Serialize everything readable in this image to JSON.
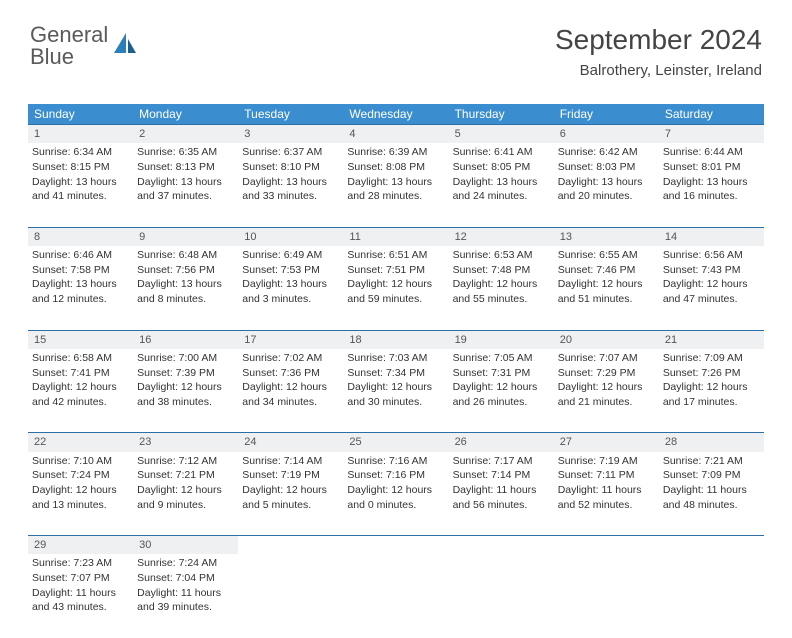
{
  "brand": {
    "word1": "General",
    "word2": "Blue"
  },
  "header": {
    "month_title": "September 2024",
    "location": "Balrothery, Leinster, Ireland"
  },
  "colors": {
    "header_bg": "#3a8dce",
    "header_border": "#2a6fa5",
    "daynum_bg": "#eef0f1",
    "brand_blue": "#2a7fba"
  },
  "weekday_names": [
    "Sunday",
    "Monday",
    "Tuesday",
    "Wednesday",
    "Thursday",
    "Friday",
    "Saturday"
  ],
  "weeks": [
    [
      {
        "n": "1",
        "sr": "6:34 AM",
        "ss": "8:15 PM",
        "dh": "13",
        "dm": "41"
      },
      {
        "n": "2",
        "sr": "6:35 AM",
        "ss": "8:13 PM",
        "dh": "13",
        "dm": "37"
      },
      {
        "n": "3",
        "sr": "6:37 AM",
        "ss": "8:10 PM",
        "dh": "13",
        "dm": "33"
      },
      {
        "n": "4",
        "sr": "6:39 AM",
        "ss": "8:08 PM",
        "dh": "13",
        "dm": "28"
      },
      {
        "n": "5",
        "sr": "6:41 AM",
        "ss": "8:05 PM",
        "dh": "13",
        "dm": "24"
      },
      {
        "n": "6",
        "sr": "6:42 AM",
        "ss": "8:03 PM",
        "dh": "13",
        "dm": "20"
      },
      {
        "n": "7",
        "sr": "6:44 AM",
        "ss": "8:01 PM",
        "dh": "13",
        "dm": "16"
      }
    ],
    [
      {
        "n": "8",
        "sr": "6:46 AM",
        "ss": "7:58 PM",
        "dh": "13",
        "dm": "12"
      },
      {
        "n": "9",
        "sr": "6:48 AM",
        "ss": "7:56 PM",
        "dh": "13",
        "dm": "8"
      },
      {
        "n": "10",
        "sr": "6:49 AM",
        "ss": "7:53 PM",
        "dh": "13",
        "dm": "3"
      },
      {
        "n": "11",
        "sr": "6:51 AM",
        "ss": "7:51 PM",
        "dh": "12",
        "dm": "59"
      },
      {
        "n": "12",
        "sr": "6:53 AM",
        "ss": "7:48 PM",
        "dh": "12",
        "dm": "55"
      },
      {
        "n": "13",
        "sr": "6:55 AM",
        "ss": "7:46 PM",
        "dh": "12",
        "dm": "51"
      },
      {
        "n": "14",
        "sr": "6:56 AM",
        "ss": "7:43 PM",
        "dh": "12",
        "dm": "47"
      }
    ],
    [
      {
        "n": "15",
        "sr": "6:58 AM",
        "ss": "7:41 PM",
        "dh": "12",
        "dm": "42"
      },
      {
        "n": "16",
        "sr": "7:00 AM",
        "ss": "7:39 PM",
        "dh": "12",
        "dm": "38"
      },
      {
        "n": "17",
        "sr": "7:02 AM",
        "ss": "7:36 PM",
        "dh": "12",
        "dm": "34"
      },
      {
        "n": "18",
        "sr": "7:03 AM",
        "ss": "7:34 PM",
        "dh": "12",
        "dm": "30"
      },
      {
        "n": "19",
        "sr": "7:05 AM",
        "ss": "7:31 PM",
        "dh": "12",
        "dm": "26"
      },
      {
        "n": "20",
        "sr": "7:07 AM",
        "ss": "7:29 PM",
        "dh": "12",
        "dm": "21"
      },
      {
        "n": "21",
        "sr": "7:09 AM",
        "ss": "7:26 PM",
        "dh": "12",
        "dm": "17"
      }
    ],
    [
      {
        "n": "22",
        "sr": "7:10 AM",
        "ss": "7:24 PM",
        "dh": "12",
        "dm": "13"
      },
      {
        "n": "23",
        "sr": "7:12 AM",
        "ss": "7:21 PM",
        "dh": "12",
        "dm": "9"
      },
      {
        "n": "24",
        "sr": "7:14 AM",
        "ss": "7:19 PM",
        "dh": "12",
        "dm": "5"
      },
      {
        "n": "25",
        "sr": "7:16 AM",
        "ss": "7:16 PM",
        "dh": "12",
        "dm": "0"
      },
      {
        "n": "26",
        "sr": "7:17 AM",
        "ss": "7:14 PM",
        "dh": "11",
        "dm": "56"
      },
      {
        "n": "27",
        "sr": "7:19 AM",
        "ss": "7:11 PM",
        "dh": "11",
        "dm": "52"
      },
      {
        "n": "28",
        "sr": "7:21 AM",
        "ss": "7:09 PM",
        "dh": "11",
        "dm": "48"
      }
    ],
    [
      {
        "n": "29",
        "sr": "7:23 AM",
        "ss": "7:07 PM",
        "dh": "11",
        "dm": "43"
      },
      {
        "n": "30",
        "sr": "7:24 AM",
        "ss": "7:04 PM",
        "dh": "11",
        "dm": "39"
      },
      null,
      null,
      null,
      null,
      null
    ]
  ],
  "labels": {
    "sunrise": "Sunrise:",
    "sunset": "Sunset:",
    "daylight": "Daylight:",
    "hours": "hours",
    "and": "and",
    "minutes": "minutes."
  }
}
